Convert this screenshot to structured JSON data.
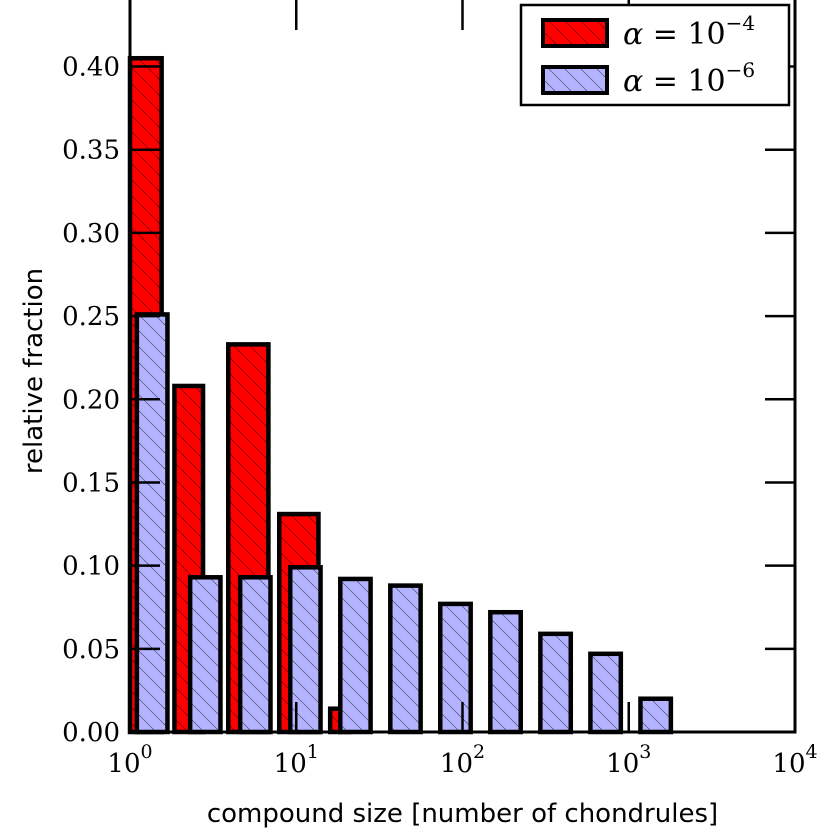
{
  "chart_data": {
    "type": "bar",
    "xscale": "log",
    "xlim": [
      1,
      10000
    ],
    "ylim": [
      0,
      0.44
    ],
    "xlabel": "compound size [number of chondrules]",
    "ylabel": "relative fraction",
    "x_ticks": [
      {
        "value": 1,
        "base": "10",
        "exp": "0"
      },
      {
        "value": 10,
        "base": "10",
        "exp": "1"
      },
      {
        "value": 100,
        "base": "10",
        "exp": "2"
      },
      {
        "value": 1000,
        "base": "10",
        "exp": "3"
      },
      {
        "value": 10000,
        "base": "10",
        "exp": "4"
      }
    ],
    "y_ticks": [
      {
        "value": 0.0,
        "label": "0.00"
      },
      {
        "value": 0.05,
        "label": "0.05"
      },
      {
        "value": 0.1,
        "label": "0.10"
      },
      {
        "value": 0.15,
        "label": "0.15"
      },
      {
        "value": 0.2,
        "label": "0.20"
      },
      {
        "value": 0.25,
        "label": "0.25"
      },
      {
        "value": 0.3,
        "label": "0.30"
      },
      {
        "value": 0.35,
        "label": "0.35"
      },
      {
        "value": 0.4,
        "label": "0.40"
      }
    ],
    "legend_position": "top-right",
    "series": [
      {
        "name": "α = 10^-4",
        "legend_base": "α = 10",
        "legend_exp": "−4",
        "color": "#ff0000",
        "hatch": "diagonal",
        "bars": [
          {
            "x0": 1.0,
            "x1": 1.6,
            "value": 0.405
          },
          {
            "x0": 3.0,
            "x1": 4.6,
            "value": 0.208
          },
          {
            "x0": 3.0,
            "x1": 4.6,
            "value": 0.208
          },
          {
            "x0": 3.0,
            "x1": 4.6,
            "value": 0.208
          }
        ]
      },
      {
        "name": "α = 10^-6",
        "legend_base": "α = 10",
        "legend_exp": "−6",
        "color": "#b3b3ff",
        "hatch": "diagonal",
        "bars": []
      }
    ]
  }
}
